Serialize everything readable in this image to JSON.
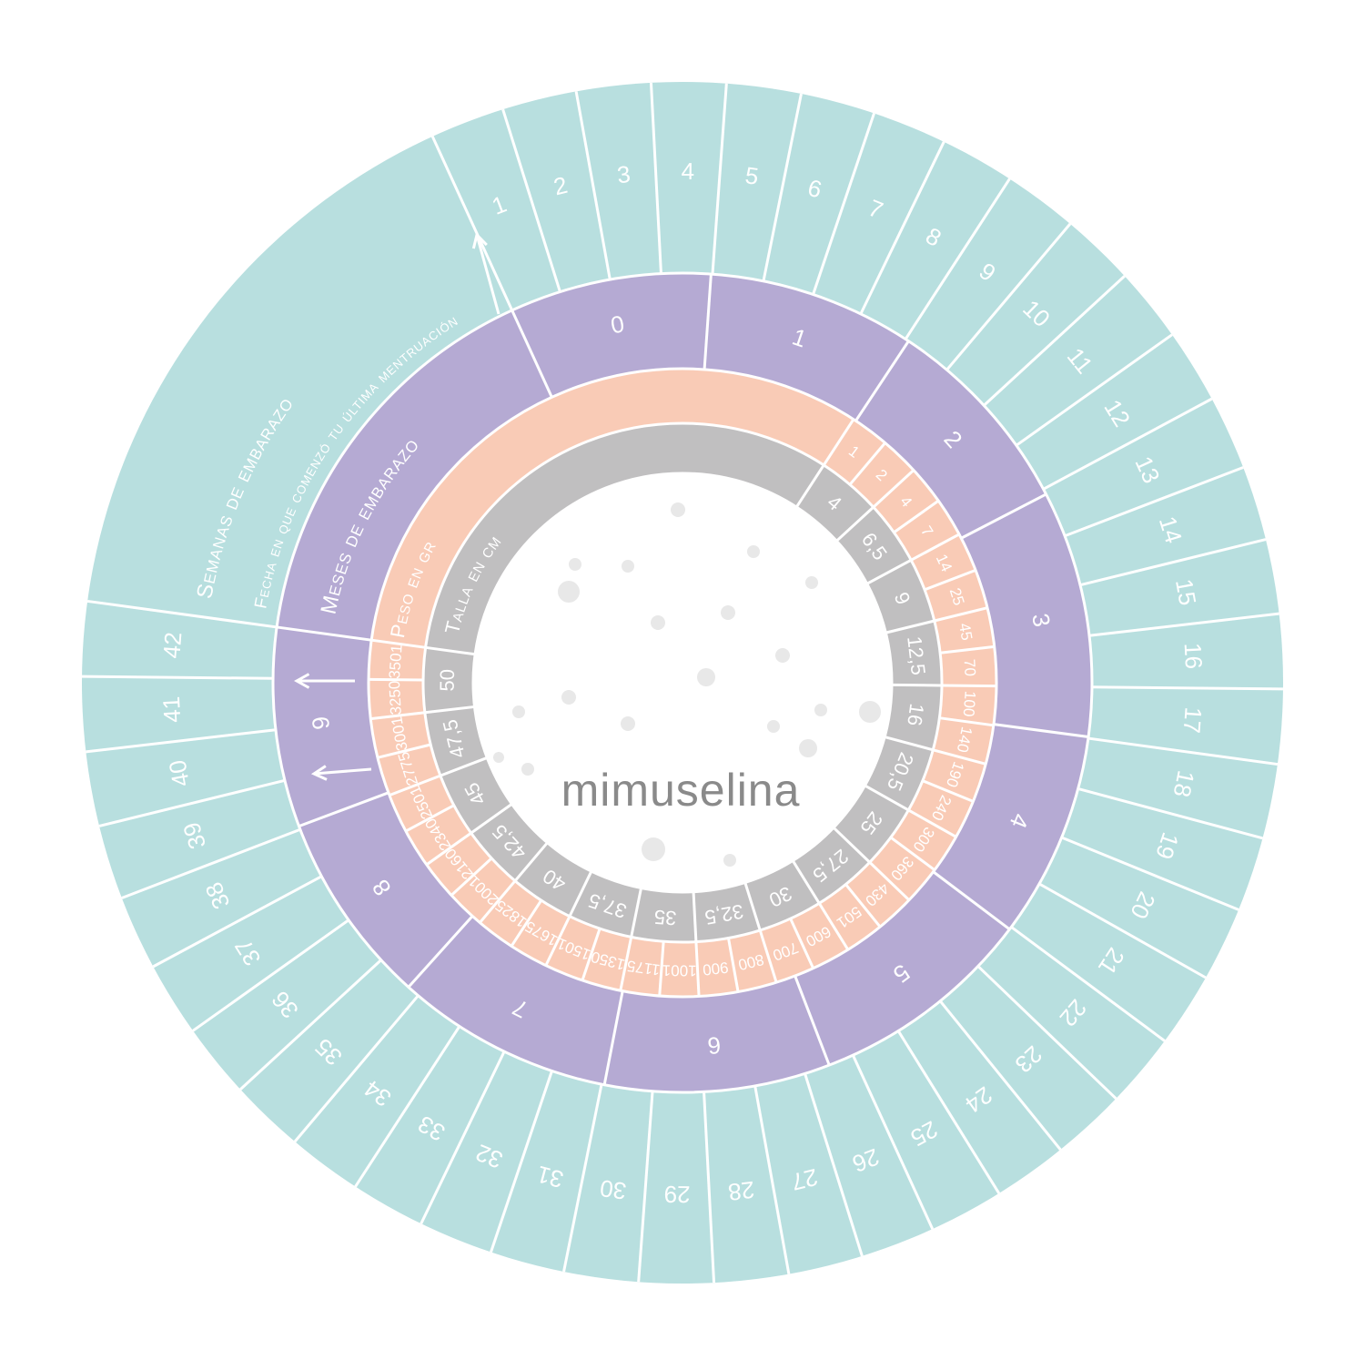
{
  "weeks": {
    "title": "Semanas de embarazo",
    "subtitle": "Fecha en que comenzó tu última mentruación",
    "labels": [
      1,
      2,
      3,
      4,
      5,
      6,
      7,
      8,
      9,
      10,
      11,
      12,
      13,
      14,
      15,
      16,
      17,
      18,
      19,
      20,
      21,
      22,
      23,
      24,
      25,
      26,
      27,
      28,
      29,
      30,
      31,
      32,
      33,
      34,
      35,
      36,
      37,
      38,
      39,
      40,
      41,
      42
    ]
  },
  "months": {
    "title": "Meses de embarazo",
    "labels": [
      0,
      1,
      2,
      3,
      4,
      5,
      6,
      7,
      8,
      9
    ]
  },
  "weight": {
    "title": "Peso en gr",
    "labels": [
      1,
      2,
      4,
      7,
      14,
      25,
      45,
      70,
      100,
      140,
      190,
      240,
      300,
      360,
      430,
      501,
      600,
      700,
      800,
      900,
      1001,
      1175,
      1350,
      1501,
      1675,
      1825,
      2001,
      2160,
      2340,
      2501,
      2775,
      3001,
      3250,
      3501
    ]
  },
  "length": {
    "title": "Talla en cm",
    "labels": [
      "4",
      "6,5",
      "9",
      "12,5",
      "16",
      "20,5",
      "25",
      "27,5",
      "30",
      "32,5",
      "35",
      "37,5",
      "40",
      "42,5",
      "45",
      "47,5",
      "50"
    ]
  },
  "logo": "mimuselina"
}
